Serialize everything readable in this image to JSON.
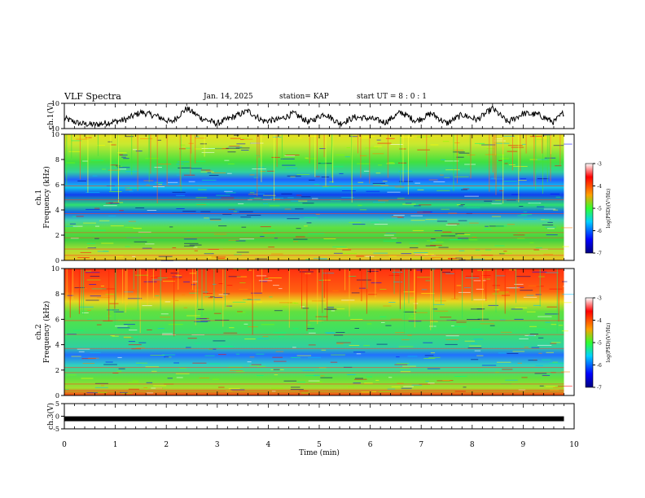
{
  "header": {
    "title": "VLF Spectra",
    "date": "Jan. 14, 2025",
    "station": "station= KAP",
    "start": "start UT =  8 : 0  : 1"
  },
  "chart_data": [
    {
      "type": "line",
      "panel": "ch1-waveform",
      "ylabel": "ch.1(V)",
      "ylim": [
        -10,
        10
      ],
      "yticks": [
        "10",
        "-10"
      ],
      "xlim": [
        0,
        10
      ],
      "series": [
        {
          "x": [
            0.0,
            0.3,
            0.6,
            0.9,
            1.2,
            1.5,
            1.8,
            2.1,
            2.4,
            2.7,
            3.0,
            3.3,
            3.6,
            3.9,
            4.2,
            4.5,
            4.8,
            5.1,
            5.4,
            5.7,
            6.0,
            6.3,
            6.6,
            6.9,
            7.2,
            7.5,
            7.8,
            8.1,
            8.4,
            8.7,
            9.0,
            9.3,
            9.6,
            9.8
          ],
          "values": [
            -2,
            -6,
            -7,
            -5,
            -3,
            3,
            0,
            -5,
            6,
            -2,
            -6,
            -1,
            4,
            -4,
            -3,
            2,
            -5,
            2,
            -6,
            -1,
            -2,
            -5,
            3,
            -4,
            2,
            -6,
            1,
            -3,
            6,
            -5,
            2,
            1,
            -5,
            3
          ]
        }
      ]
    },
    {
      "type": "heatmap",
      "panel": "ch1-spectrogram",
      "ylabel": "ch.1\nFrequency (kHz)",
      "ylim": [
        0,
        10
      ],
      "yticks": [
        "0",
        "2",
        "4",
        "6",
        "8",
        "10"
      ],
      "xlim": [
        0,
        10
      ],
      "colorbar": {
        "label": "log(PSD)(V²/Hz)",
        "range": [
          -7,
          -3
        ],
        "ticks": [
          "-3",
          "-4",
          "-5",
          "-6",
          "-7"
        ]
      }
    },
    {
      "type": "heatmap",
      "panel": "ch2-spectrogram",
      "ylabel": "ch.2\nFrequency (kHz)",
      "ylim": [
        0,
        10
      ],
      "yticks": [
        "0",
        "2",
        "4",
        "6",
        "8",
        "10"
      ],
      "xlim": [
        0,
        10
      ],
      "colorbar": {
        "label": "log(PSD)(V²/Hz)",
        "range": [
          -7,
          -3
        ],
        "ticks": [
          "-3",
          "-4",
          "-5",
          "-6",
          "-7"
        ]
      }
    },
    {
      "type": "line",
      "panel": "ch3-waveform",
      "ylabel": "ch.3(V)",
      "ylim": [
        -5,
        5
      ],
      "yticks": [
        "5",
        "0",
        "-5"
      ],
      "xlim": [
        0,
        10
      ],
      "xlabel": "Time (min)",
      "xticks": [
        "0",
        "1",
        "2",
        "3",
        "4",
        "5",
        "6",
        "7",
        "8",
        "9",
        "10"
      ],
      "series": [
        {
          "x": [
            0,
            9.8
          ],
          "values": [
            -1,
            -1
          ]
        }
      ]
    }
  ],
  "colors": {
    "scale": [
      "#00007f",
      "#0000ff",
      "#00bfff",
      "#00ff7f",
      "#7fff00",
      "#ffff00",
      "#ff7f00",
      "#ff0000",
      "#ffffff"
    ],
    "axis": "#000000"
  }
}
